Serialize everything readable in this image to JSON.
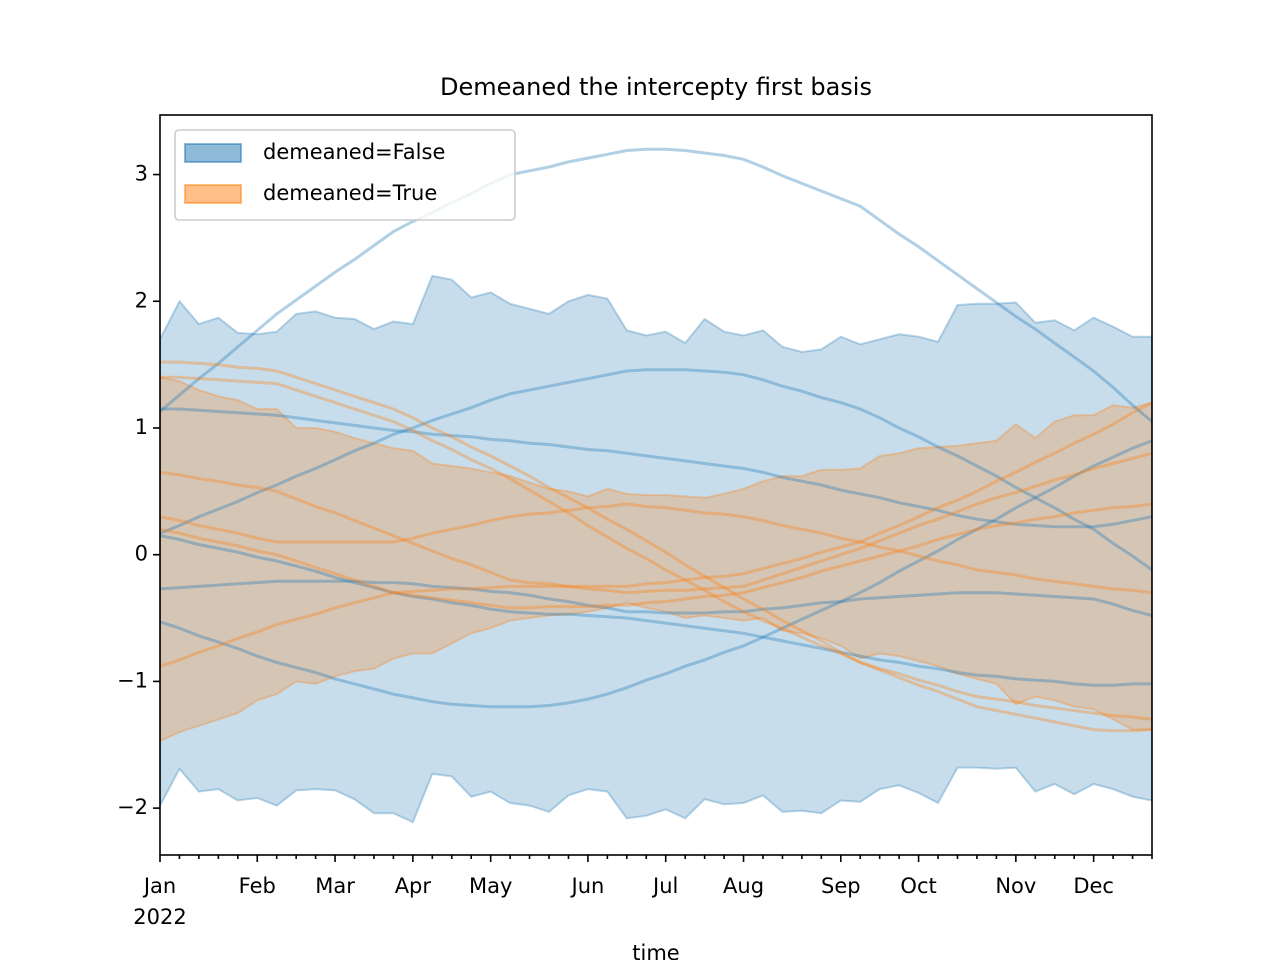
{
  "chart_data": {
    "type": "band",
    "title": "Demeaned the intercepty first basis",
    "xlabel": "time",
    "year": "2022",
    "categories": [
      "Jan",
      null,
      null,
      null,
      null,
      "Feb",
      null,
      null,
      null,
      "Mar",
      null,
      null,
      null,
      "Apr",
      null,
      null,
      null,
      "May",
      null,
      null,
      null,
      null,
      "Jun",
      null,
      null,
      null,
      "Jul",
      null,
      null,
      null,
      "Aug",
      null,
      null,
      null,
      null,
      "Sep",
      null,
      null,
      null,
      "Oct",
      null,
      null,
      null,
      null,
      "Nov",
      null,
      null,
      null,
      "Dec",
      null,
      null,
      null
    ],
    "ylim": [
      -2.37,
      3.47
    ],
    "yticks": [
      {
        "value": -2,
        "label": "−2"
      },
      {
        "value": -1,
        "label": "−1"
      },
      0,
      1,
      2,
      3
    ],
    "legend": "upper left",
    "series": [
      {
        "name": "demeaned=False",
        "color": "#1f77b4",
        "upper": [
          1.7,
          2.0,
          1.82,
          1.87,
          1.75,
          1.74,
          1.76,
          1.9,
          1.92,
          1.87,
          1.86,
          1.78,
          1.84,
          1.82,
          2.2,
          2.17,
          2.03,
          2.07,
          1.98,
          1.94,
          1.9,
          2.0,
          2.05,
          2.02,
          1.77,
          1.73,
          1.76,
          1.67,
          1.86,
          1.76,
          1.73,
          1.77,
          1.64,
          1.6,
          1.62,
          1.72,
          1.66,
          1.7,
          1.74,
          1.72,
          1.68,
          1.97,
          1.98,
          1.98,
          1.99,
          1.83,
          1.85,
          1.77,
          1.87,
          1.8,
          1.72,
          1.72
        ],
        "lower": [
          -1.98,
          -1.69,
          -1.87,
          -1.85,
          -1.94,
          -1.92,
          -1.98,
          -1.86,
          -1.85,
          -1.86,
          -1.93,
          -2.04,
          -2.04,
          -2.11,
          -1.73,
          -1.75,
          -1.91,
          -1.87,
          -1.96,
          -1.98,
          -2.03,
          -1.9,
          -1.85,
          -1.87,
          -2.08,
          -2.06,
          -2.01,
          -2.08,
          -1.93,
          -1.97,
          -1.96,
          -1.9,
          -2.03,
          -2.02,
          -2.04,
          -1.94,
          -1.95,
          -1.85,
          -1.82,
          -1.88,
          -1.96,
          -1.68,
          -1.68,
          -1.69,
          -1.68,
          -1.87,
          -1.81,
          -1.89,
          -1.81,
          -1.85,
          -1.91,
          -1.94
        ]
      },
      {
        "name": "demeaned=True",
        "color": "#ff7f0e",
        "upper": [
          1.4,
          1.37,
          1.3,
          1.25,
          1.22,
          1.15,
          1.15,
          1.0,
          1.0,
          0.97,
          0.92,
          0.88,
          0.84,
          0.82,
          0.72,
          0.7,
          0.68,
          0.65,
          0.62,
          0.57,
          0.52,
          0.5,
          0.46,
          0.52,
          0.48,
          0.47,
          0.47,
          0.46,
          0.45,
          0.48,
          0.52,
          0.58,
          0.62,
          0.62,
          0.67,
          0.67,
          0.68,
          0.78,
          0.8,
          0.84,
          0.85,
          0.86,
          0.88,
          0.9,
          1.03,
          0.92,
          1.05,
          1.1,
          1.1,
          1.18,
          1.16,
          1.2
        ],
        "lower": [
          -1.47,
          -1.4,
          -1.35,
          -1.3,
          -1.25,
          -1.15,
          -1.1,
          -1.0,
          -1.02,
          -0.96,
          -0.92,
          -0.9,
          -0.82,
          -0.78,
          -0.78,
          -0.7,
          -0.62,
          -0.58,
          -0.52,
          -0.5,
          -0.48,
          -0.47,
          -0.45,
          -0.42,
          -0.38,
          -0.42,
          -0.45,
          -0.5,
          -0.48,
          -0.5,
          -0.52,
          -0.5,
          -0.6,
          -0.62,
          -0.66,
          -0.72,
          -0.82,
          -0.78,
          -0.8,
          -0.84,
          -0.88,
          -0.94,
          -0.98,
          -1.02,
          -1.18,
          -1.12,
          -1.15,
          -1.2,
          -1.22,
          -1.3,
          -1.38,
          -1.38
        ]
      }
    ],
    "lines": [
      {
        "color": "#1f77b4",
        "values": [
          1.13,
          1.26,
          1.39,
          1.51,
          1.64,
          1.77,
          1.9,
          2.01,
          2.12,
          2.23,
          2.33,
          2.44,
          2.55,
          2.63,
          2.7,
          2.78,
          2.85,
          2.93,
          3.0,
          3.03,
          3.06,
          3.1,
          3.13,
          3.16,
          3.19,
          3.2,
          3.2,
          3.19,
          3.17,
          3.15,
          3.12,
          3.06,
          2.99,
          2.93,
          2.87,
          2.81,
          2.75,
          2.64,
          2.53,
          2.43,
          2.32,
          2.21,
          2.1,
          1.99,
          1.88,
          1.78,
          1.67,
          1.56,
          1.45,
          1.32,
          1.18,
          1.05
        ]
      },
      {
        "color": "#1f77b4",
        "values": [
          0.17,
          0.23,
          0.3,
          0.36,
          0.42,
          0.49,
          0.55,
          0.62,
          0.68,
          0.75,
          0.82,
          0.88,
          0.95,
          1.0,
          1.06,
          1.11,
          1.16,
          1.22,
          1.27,
          1.3,
          1.33,
          1.36,
          1.39,
          1.42,
          1.45,
          1.46,
          1.46,
          1.46,
          1.45,
          1.44,
          1.42,
          1.38,
          1.33,
          1.29,
          1.24,
          1.2,
          1.15,
          1.08,
          1.0,
          0.93,
          0.85,
          0.78,
          0.7,
          0.62,
          0.53,
          0.45,
          0.37,
          0.28,
          0.2,
          0.09,
          -0.01,
          -0.12
        ]
      },
      {
        "color": "#1f77b4",
        "values": [
          -0.53,
          -0.58,
          -0.64,
          -0.69,
          -0.74,
          -0.8,
          -0.85,
          -0.89,
          -0.93,
          -0.98,
          -1.02,
          -1.06,
          -1.1,
          -1.13,
          -1.16,
          -1.18,
          -1.19,
          -1.2,
          -1.2,
          -1.2,
          -1.19,
          -1.17,
          -1.14,
          -1.1,
          -1.05,
          -0.99,
          -0.94,
          -0.88,
          -0.83,
          -0.77,
          -0.72,
          -0.65,
          -0.58,
          -0.51,
          -0.44,
          -0.37,
          -0.3,
          -0.22,
          -0.13,
          -0.05,
          0.03,
          0.12,
          0.2,
          0.28,
          0.37,
          0.45,
          0.53,
          0.62,
          0.7,
          0.77,
          0.84,
          0.9
        ]
      },
      {
        "color": "#1f77b4",
        "values": [
          1.15,
          1.15,
          1.14,
          1.13,
          1.12,
          1.11,
          1.1,
          1.08,
          1.06,
          1.04,
          1.02,
          1.0,
          0.98,
          0.97,
          0.95,
          0.94,
          0.93,
          0.91,
          0.9,
          0.88,
          0.87,
          0.85,
          0.83,
          0.82,
          0.8,
          0.78,
          0.76,
          0.74,
          0.72,
          0.7,
          0.68,
          0.65,
          0.61,
          0.58,
          0.55,
          0.51,
          0.48,
          0.45,
          0.41,
          0.38,
          0.35,
          0.31,
          0.28,
          0.26,
          0.24,
          0.23,
          0.22,
          0.22,
          0.22,
          0.24,
          0.27,
          0.3
        ]
      },
      {
        "color": "#1f77b4",
        "values": [
          0.15,
          0.12,
          0.08,
          0.05,
          0.02,
          -0.02,
          -0.05,
          -0.09,
          -0.13,
          -0.18,
          -0.22,
          -0.26,
          -0.3,
          -0.33,
          -0.35,
          -0.38,
          -0.4,
          -0.43,
          -0.45,
          -0.46,
          -0.47,
          -0.47,
          -0.48,
          -0.49,
          -0.5,
          -0.52,
          -0.54,
          -0.56,
          -0.58,
          -0.6,
          -0.62,
          -0.65,
          -0.68,
          -0.71,
          -0.74,
          -0.77,
          -0.8,
          -0.83,
          -0.85,
          -0.88,
          -0.9,
          -0.93,
          -0.95,
          -0.96,
          -0.98,
          -0.99,
          -1.0,
          -1.02,
          -1.03,
          -1.03,
          -1.02,
          -1.02
        ]
      },
      {
        "color": "#1f77b4",
        "values": [
          -0.27,
          -0.26,
          -0.25,
          -0.24,
          -0.23,
          -0.22,
          -0.21,
          -0.21,
          -0.21,
          -0.21,
          -0.21,
          -0.22,
          -0.22,
          -0.23,
          -0.25,
          -0.26,
          -0.27,
          -0.29,
          -0.3,
          -0.32,
          -0.35,
          -0.37,
          -0.4,
          -0.42,
          -0.45,
          -0.45,
          -0.46,
          -0.46,
          -0.46,
          -0.45,
          -0.45,
          -0.43,
          -0.42,
          -0.4,
          -0.38,
          -0.37,
          -0.35,
          -0.34,
          -0.33,
          -0.32,
          -0.31,
          -0.3,
          -0.3,
          -0.3,
          -0.31,
          -0.32,
          -0.33,
          -0.34,
          -0.35,
          -0.39,
          -0.44,
          -0.48
        ]
      },
      {
        "color": "#ff7f0e",
        "values": [
          1.52,
          1.52,
          1.51,
          1.5,
          1.48,
          1.47,
          1.45,
          1.4,
          1.35,
          1.3,
          1.25,
          1.2,
          1.15,
          1.08,
          1.0,
          0.93,
          0.85,
          0.78,
          0.7,
          0.62,
          0.53,
          0.45,
          0.37,
          0.28,
          0.2,
          0.11,
          0.02,
          -0.08,
          -0.17,
          -0.26,
          -0.35,
          -0.43,
          -0.52,
          -0.6,
          -0.68,
          -0.77,
          -0.85,
          -0.91,
          -0.97,
          -1.03,
          -1.08,
          -1.14,
          -1.2,
          -1.23,
          -1.26,
          -1.29,
          -1.32,
          -1.35,
          -1.38,
          -1.39,
          -1.39,
          -1.38
        ]
      },
      {
        "color": "#ff7f0e",
        "values": [
          1.4,
          1.4,
          1.39,
          1.38,
          1.37,
          1.36,
          1.35,
          1.3,
          1.25,
          1.2,
          1.15,
          1.1,
          1.05,
          0.98,
          0.9,
          0.83,
          0.75,
          0.68,
          0.6,
          0.51,
          0.42,
          0.33,
          0.23,
          0.14,
          0.05,
          -0.03,
          -0.12,
          -0.2,
          -0.28,
          -0.37,
          -0.45,
          -0.52,
          -0.58,
          -0.65,
          -0.72,
          -0.78,
          -0.85,
          -0.9,
          -0.94,
          -0.99,
          -1.03,
          -1.08,
          -1.12,
          -1.14,
          -1.16,
          -1.19,
          -1.21,
          -1.23,
          -1.25,
          -1.27,
          -1.28,
          -1.3
        ]
      },
      {
        "color": "#ff7f0e",
        "values": [
          -0.88,
          -0.83,
          -0.77,
          -0.72,
          -0.66,
          -0.61,
          -0.55,
          -0.51,
          -0.47,
          -0.42,
          -0.38,
          -0.34,
          -0.3,
          -0.29,
          -0.28,
          -0.27,
          -0.27,
          -0.26,
          -0.25,
          -0.25,
          -0.25,
          -0.25,
          -0.25,
          -0.25,
          -0.25,
          -0.23,
          -0.22,
          -0.2,
          -0.18,
          -0.17,
          -0.15,
          -0.11,
          -0.07,
          -0.03,
          0.02,
          0.06,
          0.1,
          0.17,
          0.23,
          0.3,
          0.37,
          0.43,
          0.5,
          0.58,
          0.65,
          0.73,
          0.8,
          0.88,
          0.95,
          1.03,
          1.12,
          1.2
        ]
      },
      {
        "color": "#ff7f0e",
        "values": [
          0.65,
          0.63,
          0.6,
          0.58,
          0.55,
          0.53,
          0.5,
          0.44,
          0.38,
          0.33,
          0.27,
          0.21,
          0.15,
          0.09,
          0.03,
          -0.03,
          -0.08,
          -0.14,
          -0.2,
          -0.22,
          -0.23,
          -0.25,
          -0.27,
          -0.28,
          -0.3,
          -0.29,
          -0.28,
          -0.28,
          -0.27,
          -0.26,
          -0.25,
          -0.2,
          -0.15,
          -0.1,
          -0.05,
          0.0,
          0.05,
          0.11,
          0.17,
          0.23,
          0.28,
          0.34,
          0.4,
          0.45,
          0.49,
          0.54,
          0.59,
          0.63,
          0.68,
          0.72,
          0.76,
          0.8
        ]
      },
      {
        "color": "#ff7f0e",
        "values": [
          0.3,
          0.27,
          0.23,
          0.2,
          0.17,
          0.13,
          0.1,
          0.1,
          0.1,
          0.1,
          0.1,
          0.1,
          0.1,
          0.13,
          0.17,
          0.2,
          0.23,
          0.27,
          0.3,
          0.32,
          0.33,
          0.35,
          0.37,
          0.38,
          0.4,
          0.38,
          0.37,
          0.35,
          0.33,
          0.32,
          0.3,
          0.27,
          0.23,
          0.2,
          0.17,
          0.13,
          0.1,
          0.06,
          0.03,
          -0.01,
          -0.05,
          -0.08,
          -0.12,
          -0.14,
          -0.16,
          -0.19,
          -0.21,
          -0.23,
          -0.25,
          -0.27,
          -0.28,
          -0.3
        ]
      },
      {
        "color": "#ff7f0e",
        "values": [
          0.2,
          0.17,
          0.13,
          0.1,
          0.07,
          0.03,
          0.0,
          -0.05,
          -0.1,
          -0.15,
          -0.2,
          -0.25,
          -0.3,
          -0.32,
          -0.34,
          -0.36,
          -0.38,
          -0.4,
          -0.42,
          -0.42,
          -0.41,
          -0.41,
          -0.41,
          -0.4,
          -0.4,
          -0.38,
          -0.37,
          -0.35,
          -0.33,
          -0.32,
          -0.3,
          -0.26,
          -0.22,
          -0.18,
          -0.13,
          -0.09,
          -0.05,
          -0.01,
          0.03,
          0.07,
          0.12,
          0.16,
          0.2,
          0.23,
          0.25,
          0.28,
          0.3,
          0.33,
          0.35,
          0.37,
          0.38,
          0.4
        ]
      }
    ]
  }
}
